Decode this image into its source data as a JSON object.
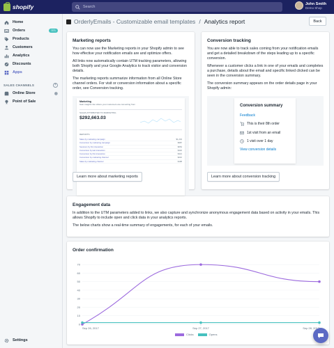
{
  "topbar": {
    "brand": "shopify",
    "search_placeholder": "Search",
    "user_name": "John Smith",
    "user_shop": "Demo Shop"
  },
  "sidebar": {
    "items": [
      {
        "label": "Home",
        "icon": "home-icon"
      },
      {
        "label": "Orders",
        "icon": "orders-icon",
        "badge": "371"
      },
      {
        "label": "Products",
        "icon": "tag-icon"
      },
      {
        "label": "Customers",
        "icon": "customers-icon"
      },
      {
        "label": "Analytics",
        "icon": "analytics-icon"
      },
      {
        "label": "Discounts",
        "icon": "discount-icon"
      },
      {
        "label": "Apps",
        "icon": "apps-icon",
        "active": true
      }
    ],
    "channels_label": "SALES CHANNELS",
    "channels": [
      {
        "label": "Online Store",
        "icon": "store-icon"
      },
      {
        "label": "Point of Sale",
        "icon": "pos-icon"
      }
    ],
    "settings_label": "Settings"
  },
  "header": {
    "app_name": "OrderlyEmails - Customizable email templates",
    "separator": "/",
    "page_title": "Analytics report",
    "back_label": "Back"
  },
  "marketing": {
    "title": "Marketing reports",
    "p1": "You can now use the Marketing reports in your Shopify admin to see how effective your notification emails are and optimize offers.",
    "p2": "All links now automatically contain UTM tracking parameters, allowing both Shopify and your Google Analytics to track visitor and conversion details.",
    "p3": "The marketing reports summarize information from all Online Store channel orders. For visit or conversion information about a specific order, see Conversion tracking.",
    "button": "Learn more about marketing reports",
    "preview": {
      "heading": "Marketing",
      "subtext": "Gain insights into where your customers are converting from",
      "metric_label": "SALES ATTRIBUTED TO MARKETING",
      "metric_value": "$292,663.03",
      "list_label": "REPORTS",
      "links": [
        "Sales by marketing campaign",
        "Conversion by marketing campaign",
        "Sessions by first interaction",
        "Conversion by last interaction",
        "Conversion by first interaction",
        "Conversion by marketing channel",
        "Sales by marketing channel"
      ],
      "values": [
        "$1,234",
        "$987",
        "$654",
        "$432",
        "$321",
        "$210",
        "$198"
      ]
    }
  },
  "conversion": {
    "title": "Conversion tracking",
    "p1": "You are now able to track sales coming from your notification emails and get a detailed breakdown of the steps leading up to a specific conversion.",
    "p2": "Whenever a customer clicks a link in one of your emails and completes a purchase, details about the email and specific linked clicked can be seen in the conversion summary.",
    "p3": "The conversion summary appears on the order details page in your Shopify admin:",
    "button": "Learn more about conversion tracking",
    "summary": {
      "title": "Conversion summary",
      "source": "Feedback",
      "rows": [
        "This is their 8th order",
        "1st visit from an email",
        "1 visit over 1 day"
      ],
      "details_link": "View conversion details"
    }
  },
  "engagement": {
    "title": "Engagement data",
    "p1": "In addition to the UTM parameters added to links, we also capture and synchronize anonymous engagement data based on activity in your emails. This allows Shopify to include open and click data in your analytics reports.",
    "p2": "The below charts show a real-time summary of engagements, for each of your emails."
  },
  "order_confirmation": {
    "title": "Order confirmation"
  },
  "chart_data": {
    "type": "line",
    "title": "Order confirmation",
    "x": [
      "Sep 26, 2017",
      "Sep 27, 2017",
      "Sep 28, 2017"
    ],
    "series": [
      {
        "name": "Clicks",
        "values": [
          0,
          70,
          50
        ],
        "color": "#9c6ade"
      },
      {
        "name": "Opens",
        "values": [
          2,
          2,
          2
        ],
        "color": "#47c1bf"
      }
    ],
    "ylim": [
      0,
      75
    ],
    "yticks": [
      0,
      10,
      20,
      30,
      40,
      50,
      60,
      70
    ],
    "grid": true,
    "legend": "bottom"
  },
  "colors": {
    "accent": "#5c6ac4",
    "topbar": "#1c2260",
    "teal": "#47c1bf",
    "purple": "#9c6ade",
    "link": "#007ace"
  }
}
